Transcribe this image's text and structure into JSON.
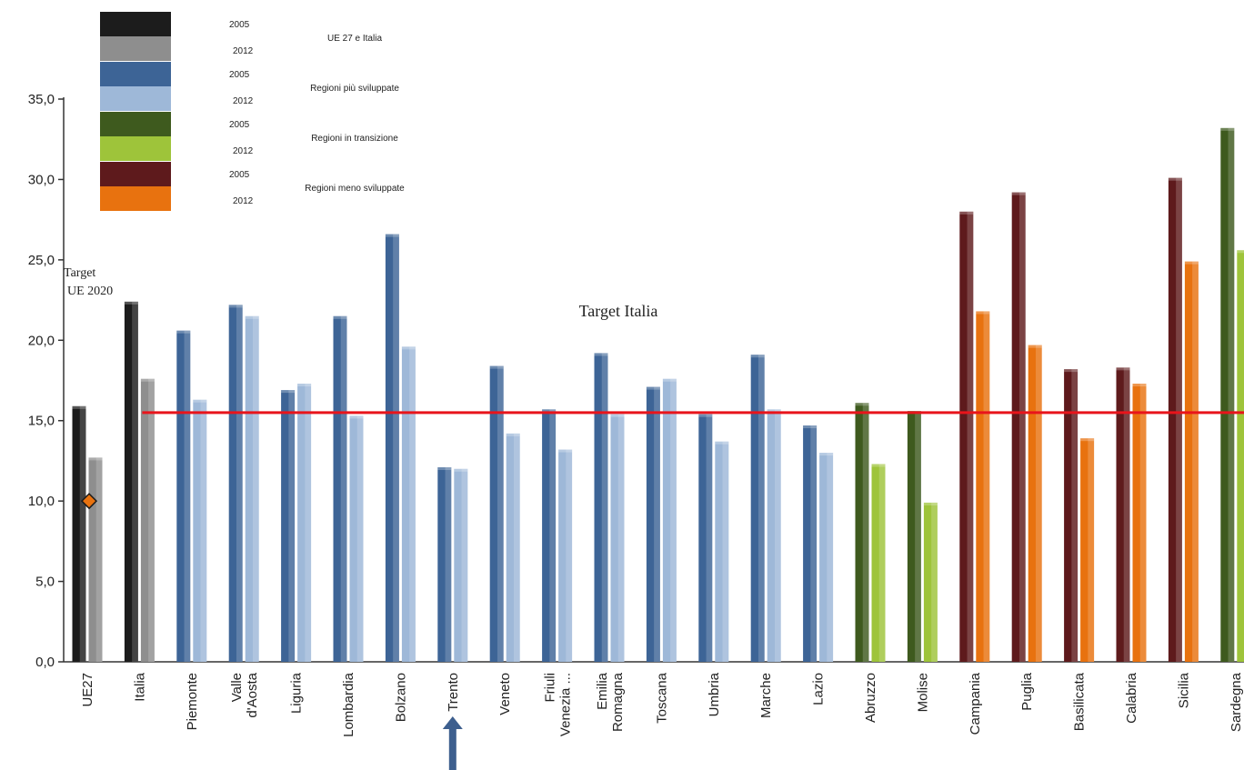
{
  "chart_data": {
    "type": "bar",
    "ylim": [
      0,
      35
    ],
    "y_ticks": [
      "0,0",
      "5,0",
      "10,0",
      "15,0",
      "20,0",
      "25,0",
      "30,0",
      "35,0"
    ],
    "categories": [
      {
        "label": "UE27",
        "group": "eu",
        "v2005": 15.9,
        "v2012": 12.7
      },
      {
        "label": "Italia",
        "group": "eu",
        "v2005": 22.4,
        "v2012": 17.6
      },
      {
        "label": "Piemonte",
        "group": "more",
        "v2005": 20.6,
        "v2012": 16.3
      },
      {
        "label": "Valle d'Aosta",
        "group": "more",
        "v2005": 22.2,
        "v2012": 21.5
      },
      {
        "label": "Liguria",
        "group": "more",
        "v2005": 16.9,
        "v2012": 17.3
      },
      {
        "label": "Lombardia",
        "group": "more",
        "v2005": 21.5,
        "v2012": 15.3
      },
      {
        "label": "Bolzano",
        "group": "more",
        "v2005": 26.6,
        "v2012": 19.6
      },
      {
        "label": "Trento",
        "group": "more",
        "v2005": 12.1,
        "v2012": 12.0
      },
      {
        "label": "Veneto",
        "group": "more",
        "v2005": 18.4,
        "v2012": 14.2
      },
      {
        "label": "Friuli Venezia ...",
        "group": "more",
        "v2005": 15.7,
        "v2012": 13.2
      },
      {
        "label": "Emilia Romagna",
        "group": "more",
        "v2005": 19.2,
        "v2012": 15.4
      },
      {
        "label": "Toscana",
        "group": "more",
        "v2005": 17.1,
        "v2012": 17.6
      },
      {
        "label": "Umbria",
        "group": "more",
        "v2005": 15.4,
        "v2012": 13.7
      },
      {
        "label": "Marche",
        "group": "more",
        "v2005": 19.1,
        "v2012": 15.7
      },
      {
        "label": "Lazio",
        "group": "more",
        "v2005": 14.7,
        "v2012": 13.0
      },
      {
        "label": "Abruzzo",
        "group": "trans",
        "v2005": 16.1,
        "v2012": 12.3
      },
      {
        "label": "Molise",
        "group": "trans",
        "v2005": 15.6,
        "v2012": 9.9
      },
      {
        "label": "Campania",
        "group": "less",
        "v2005": 28.0,
        "v2012": 21.8
      },
      {
        "label": "Puglia",
        "group": "less",
        "v2005": 29.2,
        "v2012": 19.7
      },
      {
        "label": "Basilicata",
        "group": "less",
        "v2005": 18.2,
        "v2012": 13.9
      },
      {
        "label": "Calabria",
        "group": "less",
        "v2005": 18.3,
        "v2012": 17.3
      },
      {
        "label": "Sicilia",
        "group": "less",
        "v2005": 30.1,
        "v2012": 24.9
      },
      {
        "label": "Sardegna",
        "group": "trans",
        "v2005": 33.2,
        "v2012": 25.6
      }
    ],
    "target_italia": 15.5,
    "target_ue2020": 10.0,
    "target_italia_label": "Target Italia",
    "target_ue2020_label": [
      "Target",
      "UE 2020"
    ],
    "target_line_color": "#e8141b",
    "legend": [
      {
        "y2005": "2005",
        "y2012": "2012",
        "name": "UE 27 e Italia",
        "group": "eu"
      },
      {
        "y2005": "2005",
        "y2012": "2012",
        "name": "Regioni più sviluppate",
        "group": "more"
      },
      {
        "y2005": "2005",
        "y2012": "2012",
        "name": "Regioni in transizione",
        "group": "trans"
      },
      {
        "y2005": "2005",
        "y2012": "2012",
        "name": "Regioni meno sviluppate",
        "group": "less"
      }
    ],
    "colors": {
      "eu": {
        "c2005": "#1c1c1c",
        "c2012": "#8e8e8e"
      },
      "more": {
        "c2005": "#3d6496",
        "c2012": "#9eb8d8"
      },
      "trans": {
        "c2005": "#3e5a1e",
        "c2012": "#9ec43a"
      },
      "less": {
        "c2005": "#5e1a1c",
        "c2012": "#e8720f"
      }
    },
    "highlight_arrow": {
      "category": "Trento",
      "color": "#3d5f8e"
    }
  }
}
